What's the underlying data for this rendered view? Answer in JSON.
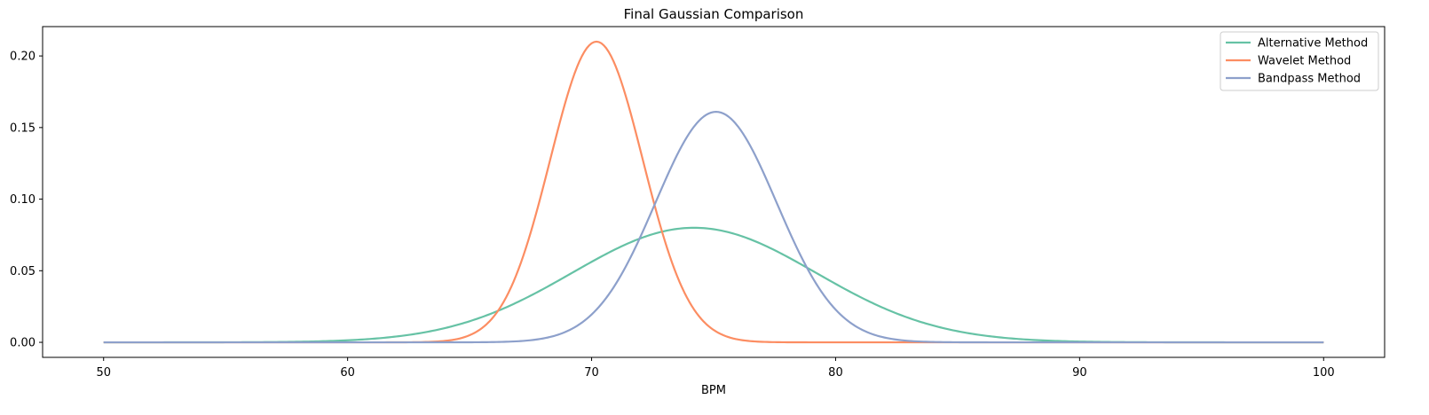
{
  "chart_data": {
    "type": "line",
    "title": "Final Gaussian Comparison",
    "xlabel": "BPM",
    "ylabel": "",
    "xlim": [
      47.5,
      102.5
    ],
    "ylim": [
      -0.0105,
      0.2205
    ],
    "x_ticks": [
      50,
      60,
      70,
      80,
      90,
      100
    ],
    "y_ticks": [
      0.0,
      0.05,
      0.1,
      0.15,
      0.2
    ],
    "grid": false,
    "legend": "top-right",
    "x_range": [
      50,
      100
    ],
    "series": [
      {
        "name": "Alternative Method",
        "color": "#66c2a5",
        "mean": 74.2,
        "std": 5.0,
        "peak": 0.08
      },
      {
        "name": "Wavelet Method",
        "color": "#fc8d62",
        "mean": 70.2,
        "std": 1.9,
        "peak": 0.21
      },
      {
        "name": "Bandpass Method",
        "color": "#8da0cb",
        "mean": 75.1,
        "std": 2.48,
        "peak": 0.161
      }
    ]
  }
}
